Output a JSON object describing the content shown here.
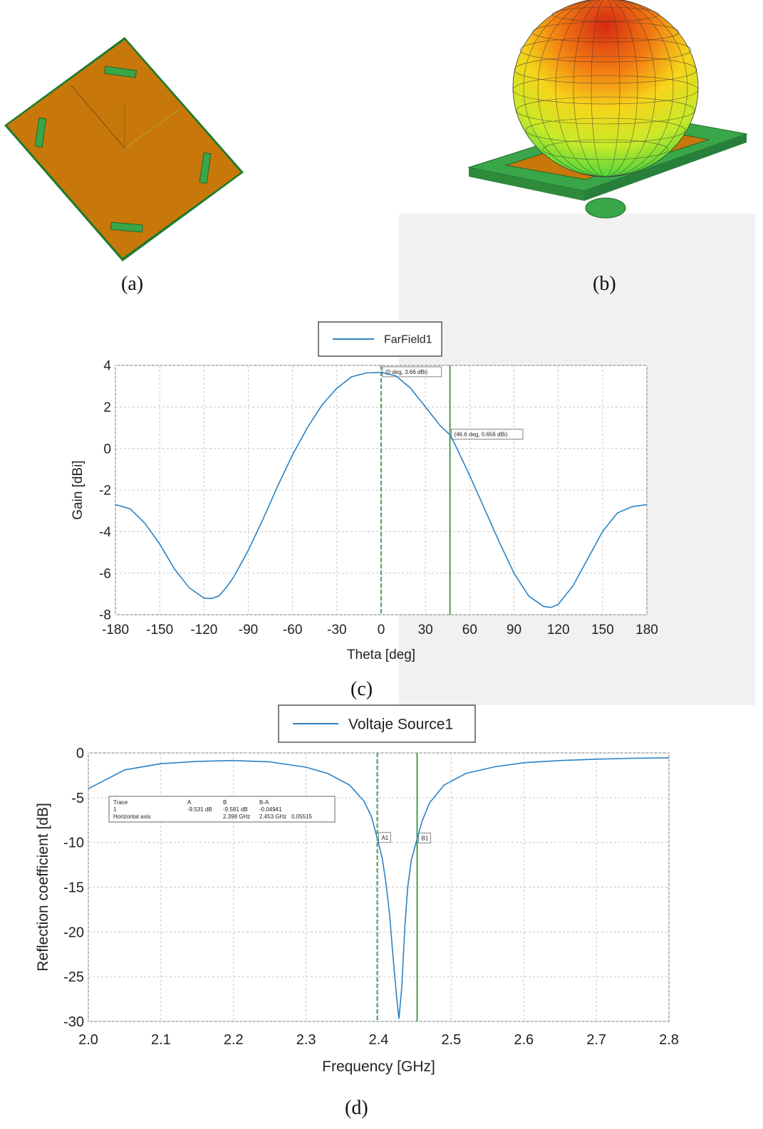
{
  "captions": {
    "a": "(a)",
    "b": "(b)",
    "c": "(c)",
    "d": "(d)"
  },
  "colors": {
    "trace": "#2b82c4",
    "marker": "#1f8a2a",
    "board": "#c8780a",
    "pcb": "#3aa64a",
    "grid": "#c8c8c8"
  },
  "chart_data": [
    {
      "type": "line",
      "legend": [
        "FarField1"
      ],
      "xlabel": "Theta [deg]",
      "ylabel": "Gain [dBi]",
      "xlim": [
        -180,
        180
      ],
      "ylim": [
        -8,
        4
      ],
      "xticks": [
        -180,
        -150,
        -120,
        -90,
        -60,
        -30,
        0,
        30,
        60,
        90,
        120,
        150,
        180
      ],
      "yticks": [
        4,
        2,
        0,
        -2,
        -4,
        -6,
        -8
      ],
      "grid": true,
      "series": [
        {
          "name": "FarField1",
          "x": [
            -180,
            -170,
            -160,
            -150,
            -140,
            -130,
            -120,
            -115,
            -110,
            -105,
            -100,
            -90,
            -80,
            -70,
            -60,
            -50,
            -40,
            -30,
            -20,
            -10,
            0,
            10,
            20,
            30,
            40,
            46.6,
            50,
            60,
            70,
            80,
            90,
            100,
            110,
            115,
            120,
            130,
            140,
            150,
            160,
            170,
            180
          ],
          "y": [
            -2.7,
            -2.9,
            -3.6,
            -4.6,
            -5.8,
            -6.7,
            -7.2,
            -7.22,
            -7.1,
            -6.7,
            -6.2,
            -4.9,
            -3.4,
            -1.8,
            -0.3,
            1.0,
            2.1,
            2.9,
            3.45,
            3.64,
            3.66,
            3.5,
            2.9,
            2.0,
            1.1,
            0.656,
            0.2,
            -1.3,
            -2.9,
            -4.5,
            -6.0,
            -7.1,
            -7.6,
            -7.65,
            -7.5,
            -6.6,
            -5.3,
            -4.0,
            -3.1,
            -2.8,
            -2.7
          ]
        }
      ],
      "markers": [
        {
          "x": 0,
          "style": "dashed",
          "label": "(0 deg, 3.66 dBi)"
        },
        {
          "x": 46.6,
          "style": "solid",
          "label": "(46.6 deg, 0.656 dBi)"
        }
      ]
    },
    {
      "type": "line",
      "legend": [
        "Voltaje Source1"
      ],
      "xlabel": "Frequency [GHz]",
      "ylabel": "Reflection coefficient [dB]",
      "xlim": [
        2.0,
        2.8
      ],
      "ylim": [
        -30,
        0
      ],
      "xticks": [
        "2.0",
        "2.1",
        "2.2",
        "2.3",
        "2.4",
        "2.5",
        "2.6",
        "2.7",
        "2.8"
      ],
      "yticks": [
        "0",
        "-5",
        "-10",
        "-15",
        "-20",
        "-25",
        "-30"
      ],
      "grid": true,
      "series": [
        {
          "name": "Voltaje Source1",
          "x": [
            2.0,
            2.05,
            2.1,
            2.15,
            2.2,
            2.25,
            2.3,
            2.33,
            2.36,
            2.38,
            2.39,
            2.398,
            2.405,
            2.41,
            2.415,
            2.42,
            2.425,
            2.428,
            2.432,
            2.436,
            2.44,
            2.445,
            2.453,
            2.46,
            2.47,
            2.49,
            2.52,
            2.56,
            2.6,
            2.65,
            2.7,
            2.75,
            2.8
          ],
          "y": [
            -4.0,
            -1.9,
            -1.2,
            -0.95,
            -0.85,
            -1.0,
            -1.6,
            -2.3,
            -3.6,
            -5.4,
            -7.1,
            -9.531,
            -11.8,
            -14.5,
            -18.0,
            -23.0,
            -27.5,
            -29.7,
            -26.0,
            -19.5,
            -15.0,
            -12.0,
            -9.581,
            -7.6,
            -5.6,
            -3.6,
            -2.3,
            -1.55,
            -1.1,
            -0.85,
            -0.7,
            -0.6,
            -0.55
          ]
        }
      ],
      "markers": [
        {
          "x": 2.398,
          "style": "dashed",
          "label": "A1"
        },
        {
          "x": 2.453,
          "style": "solid",
          "label": "B1"
        }
      ],
      "trace_table": {
        "rows": [
          [
            "Trace",
            "A",
            "B",
            "B-A",
            ""
          ],
          [
            "1",
            "-9.531 dB",
            "-9.581 dB",
            "-0.04941",
            ""
          ],
          [
            "Horizontal axis",
            "",
            "2.398 GHz",
            "2.453 GHz",
            "0.05515"
          ]
        ]
      }
    }
  ]
}
